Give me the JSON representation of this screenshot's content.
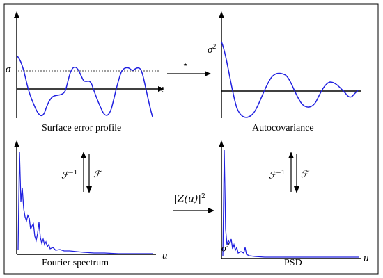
{
  "captions": {
    "surface_error": "Surface error profile",
    "autocovariance": "Autocovariance",
    "fourier_spectrum": "Fourier spectrum",
    "psd": "PSD"
  },
  "symbols": {
    "sigma": "σ",
    "sigma_squared_base": "σ",
    "sigma_squared_exp": "2",
    "x_axis": "x",
    "u_axis": "u",
    "convolution_star": "⋆",
    "inverse_fourier_base": "ℱ",
    "inverse_fourier_exp": "−1",
    "fourier": "ℱ",
    "modulus_operator_base": "|Z(u)|",
    "modulus_operator_exp": "2"
  },
  "colors": {
    "curve": "#2020e0",
    "axis": "#000000",
    "frame": "#000000"
  }
}
